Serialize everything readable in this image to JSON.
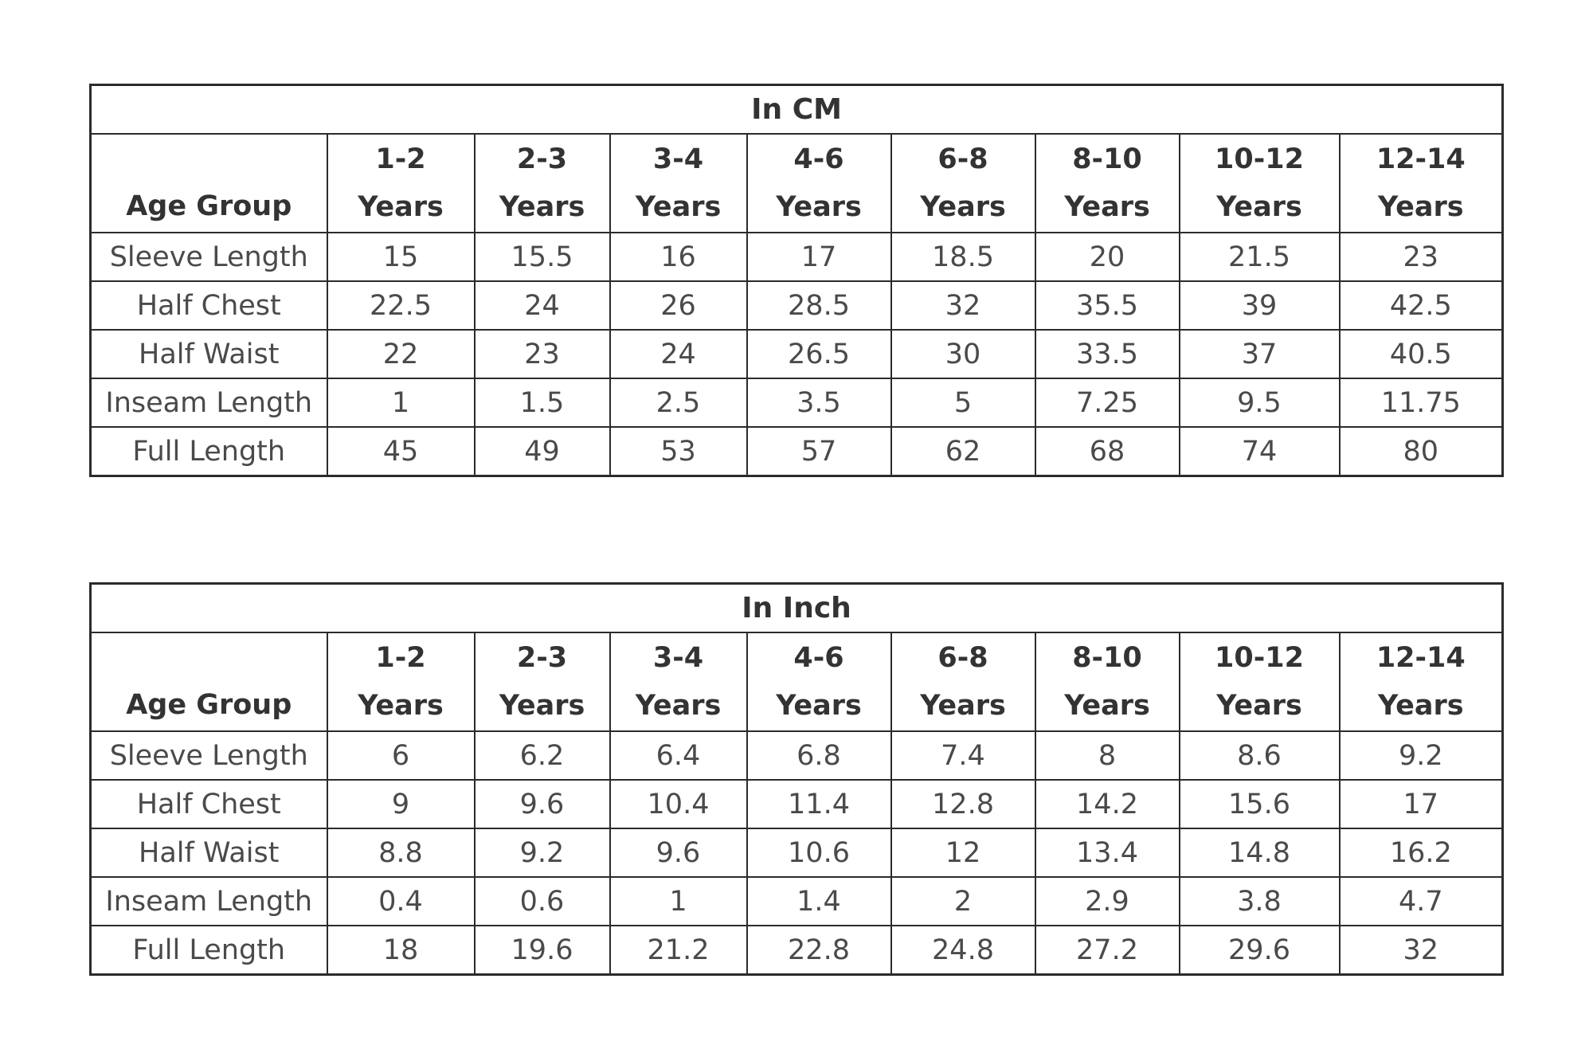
{
  "tables": [
    {
      "title": "In CM",
      "row_header": "Age Group",
      "columns": [
        {
          "range": "1-2",
          "unit": "Years"
        },
        {
          "range": "2-3",
          "unit": "Years"
        },
        {
          "range": "3-4",
          "unit": "Years"
        },
        {
          "range": "4-6",
          "unit": "Years"
        },
        {
          "range": "6-8",
          "unit": "Years"
        },
        {
          "range": "8-10",
          "unit": "Years"
        },
        {
          "range": "10-12",
          "unit": "Years"
        },
        {
          "range": "12-14",
          "unit": "Years"
        }
      ],
      "rows": [
        {
          "label": "Sleeve Length",
          "values": [
            "15",
            "15.5",
            "16",
            "17",
            "18.5",
            "20",
            "21.5",
            "23"
          ]
        },
        {
          "label": "Half Chest",
          "values": [
            "22.5",
            "24",
            "26",
            "28.5",
            "32",
            "35.5",
            "39",
            "42.5"
          ]
        },
        {
          "label": "Half Waist",
          "values": [
            "22",
            "23",
            "24",
            "26.5",
            "30",
            "33.5",
            "37",
            "40.5"
          ]
        },
        {
          "label": "Inseam Length",
          "values": [
            "1",
            "1.5",
            "2.5",
            "3.5",
            "5",
            "7.25",
            "9.5",
            "11.75"
          ]
        },
        {
          "label": "Full Length",
          "values": [
            "45",
            "49",
            "53",
            "57",
            "62",
            "68",
            "74",
            "80"
          ]
        }
      ]
    },
    {
      "title": "In Inch",
      "row_header": "Age Group",
      "columns": [
        {
          "range": "1-2",
          "unit": "Years"
        },
        {
          "range": "2-3",
          "unit": "Years"
        },
        {
          "range": "3-4",
          "unit": "Years"
        },
        {
          "range": "4-6",
          "unit": "Years"
        },
        {
          "range": "6-8",
          "unit": "Years"
        },
        {
          "range": "8-10",
          "unit": "Years"
        },
        {
          "range": "10-12",
          "unit": "Years"
        },
        {
          "range": "12-14",
          "unit": "Years"
        }
      ],
      "rows": [
        {
          "label": "Sleeve Length",
          "values": [
            "6",
            "6.2",
            "6.4",
            "6.8",
            "7.4",
            "8",
            "8.6",
            "9.2"
          ]
        },
        {
          "label": "Half Chest",
          "values": [
            "9",
            "9.6",
            "10.4",
            "11.4",
            "12.8",
            "14.2",
            "15.6",
            "17"
          ]
        },
        {
          "label": "Half Waist",
          "values": [
            "8.8",
            "9.2",
            "9.6",
            "10.6",
            "12",
            "13.4",
            "14.8",
            "16.2"
          ]
        },
        {
          "label": "Inseam Length",
          "values": [
            "0.4",
            "0.6",
            "1",
            "1.4",
            "2",
            "2.9",
            "3.8",
            "4.7"
          ]
        },
        {
          "label": "Full Length",
          "values": [
            "18",
            "19.6",
            "21.2",
            "22.8",
            "24.8",
            "27.2",
            "29.6",
            "32"
          ]
        }
      ]
    }
  ]
}
